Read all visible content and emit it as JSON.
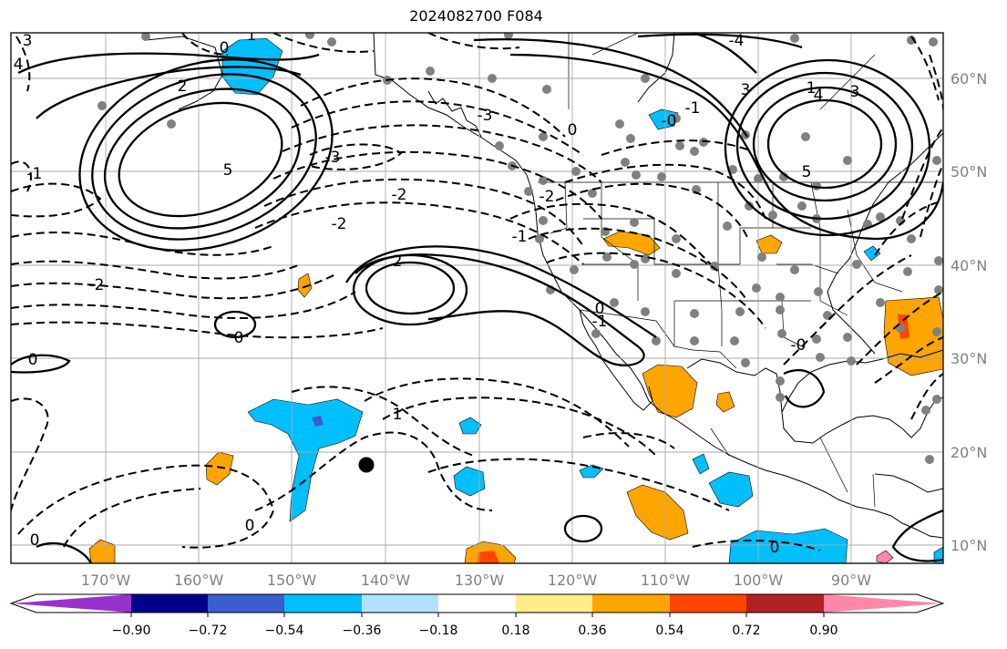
{
  "title": "2024082700 F084",
  "lon_labels": [
    "170°W",
    "160°W",
    "150°W",
    "140°W",
    "130°W",
    "120°W",
    "110°W",
    "100°W",
    "90°W"
  ],
  "lat_labels": [
    "60°N",
    "50°N",
    "40°N",
    "30°N",
    "20°N",
    "10°N"
  ],
  "colorbar": {
    "tick_labels": [
      "−0.90",
      "−0.72",
      "−0.54",
      "−0.36",
      "−0.18",
      "0.18",
      "0.36",
      "0.54",
      "0.72",
      "0.90"
    ],
    "colors": [
      "#9932cc",
      "#00008b",
      "#3a5fcd",
      "#00bfff",
      "#b0e2ff",
      "#ffffff",
      "#ffec8b",
      "#ffa500",
      "#ff4500",
      "#b22222",
      "#ff88aa"
    ]
  },
  "contour_labels": {
    "c1": "0",
    "c2": "1",
    "c3": "3",
    "c4": "4",
    "c5": "-2",
    "c6": "2",
    "c7": "-3",
    "c8": "-2",
    "c9": "-2",
    "c10": "0",
    "c11": "2",
    "c12": "0",
    "c13": "1",
    "c14": "0",
    "c15": "-1",
    "c16": "0",
    "c17": "-1",
    "c18": "-2",
    "c19": "-3",
    "c20": "0",
    "c21": "3",
    "c22": "-4",
    "c23": "1",
    "c24": "4",
    "c25": "3",
    "c26": "5",
    "c27": "-1",
    "c28": "-1",
    "c29": "0",
    "c30": "-0",
    "c31": "5",
    "c32": "-0",
    "c33": "0"
  },
  "colors": {
    "contour": "#000000",
    "gridline": "#aaaaaa",
    "station": "#808080",
    "axis_label": "#808080"
  }
}
